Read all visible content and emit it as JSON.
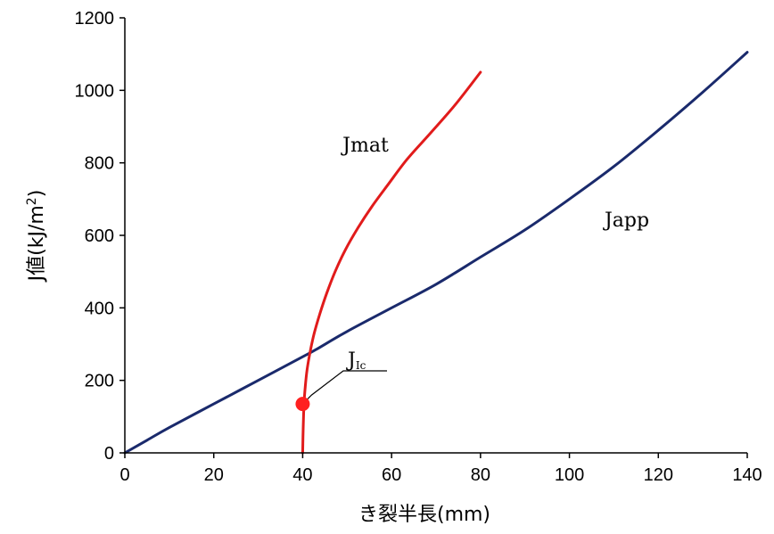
{
  "chart_data": {
    "type": "line",
    "xlabel": "き裂半長(mm)",
    "ylabel_prefix": "J値(kJ/m",
    "ylabel_sup": "2",
    "ylabel_suffix": ")",
    "xlim": [
      0,
      140
    ],
    "ylim": [
      0,
      1200
    ],
    "xticks": [
      0,
      20,
      40,
      60,
      80,
      100,
      120,
      140
    ],
    "yticks": [
      0,
      200,
      400,
      600,
      800,
      1000,
      1200
    ],
    "grid": false,
    "legend": "none",
    "series": [
      {
        "name": "Japp",
        "color": "#1a2a6c",
        "x": [
          0,
          5,
          10,
          20,
          30,
          40,
          43,
          50,
          60,
          70,
          80,
          90,
          100,
          110,
          120,
          130,
          140
        ],
        "y": [
          0,
          35,
          70,
          135,
          200,
          265,
          285,
          335,
          400,
          465,
          540,
          615,
          700,
          790,
          890,
          995,
          1105
        ]
      },
      {
        "name": "Jmat",
        "color": "#e11b1b",
        "x": [
          40,
          40.1,
          40.3,
          40.6,
          41.0,
          41.7,
          42.6,
          43.9,
          45.4,
          47.3,
          49.6,
          52.4,
          55.6,
          59.2,
          63.5,
          68.6,
          74.3,
          80.0
        ],
        "y": [
          0,
          60,
          135,
          185,
          230,
          280,
          330,
          385,
          440,
          500,
          560,
          620,
          680,
          740,
          810,
          880,
          960,
          1050
        ]
      }
    ],
    "annotations": {
      "jmat_label": "Jmat",
      "japp_label": "Japp",
      "jic_label_main": "J",
      "jic_label_sub": "Ic",
      "jic_point": {
        "x": 40,
        "y": 135
      }
    }
  }
}
